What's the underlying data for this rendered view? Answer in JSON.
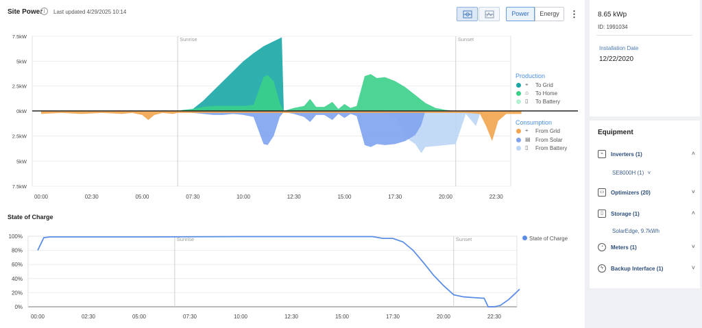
{
  "header": {
    "title": "Site Power",
    "updated": "Last updated 4/29/2025 10:14",
    "view_icons": [
      "chart-layout-split-icon",
      "chart-layout-stacked-icon"
    ],
    "tabs": [
      "Power",
      "Energy"
    ],
    "active_tab": "Power",
    "more_label": "⋮"
  },
  "soc_title": "State of Charge",
  "legend": {
    "production_head": "Production",
    "production": [
      {
        "label": "To Grid",
        "color": "#1aa6a6",
        "icon": "transmission-tower-icon"
      },
      {
        "label": "To Home",
        "color": "#3bd08a",
        "icon": "home-icon"
      },
      {
        "label": "To Battery",
        "color": "#b6f0d2",
        "icon": "battery-icon"
      }
    ],
    "consumption_head": "Consumption",
    "consumption": [
      {
        "label": "From Grid",
        "color": "#f2a44e",
        "icon": "transmission-tower-icon"
      },
      {
        "label": "From Solar",
        "color": "#7fa3f0",
        "icon": "solar-panel-icon"
      },
      {
        "label": "From Battery",
        "color": "#bcd6f5",
        "icon": "battery-icon"
      }
    ],
    "soc": {
      "label": "State of Charge",
      "color": "#5a8de6"
    }
  },
  "side": {
    "kwp": "8.65 kWp",
    "site_id": "ID: 1991034",
    "install_label": "Installation Date",
    "install_date": "12/22/2020",
    "equipment_title": "Equipment",
    "equipment": [
      {
        "label": "Inverters (1)",
        "icon": "inverter-icon",
        "chevron": "˄"
      },
      {
        "label": "Optimizers (20)",
        "icon": "optimizer-icon",
        "chevron": "˅"
      },
      {
        "label": "Storage (1)",
        "icon": "battery-icon",
        "chevron": "˄"
      },
      {
        "label": "Meters (1)",
        "icon": "meter-icon",
        "chevron": "˅"
      },
      {
        "label": "Backup Interface (1)",
        "icon": "backup-interface-icon",
        "chevron": "˅"
      }
    ],
    "inverter_sub": "SE8000H (1)",
    "inverter_sub_chevron": "˅",
    "storage_sub": "SolarEdge, 9.7kWh"
  },
  "chart_data": [
    {
      "type": "area",
      "title": "Site Power",
      "x_tick_labels": [
        "00:00",
        "02:30",
        "05:00",
        "07:30",
        "10:00",
        "12:30",
        "15:00",
        "17:30",
        "20:00",
        "22:30"
      ],
      "y_tick_labels": [
        "7.5kW",
        "5kW",
        "2.5kW",
        "0kW",
        "2.5kW",
        "5kW",
        "7.5kW"
      ],
      "ylim_production": [
        0,
        7.5
      ],
      "ylim_consumption": [
        0,
        7.5
      ],
      "x_range_hours": [
        0,
        23.75
      ],
      "annotations": [
        {
          "label": "Sunrise",
          "x": 6.75
        },
        {
          "label": "Sunset",
          "x": 20.5
        }
      ],
      "production_series": [
        {
          "name": "To Grid",
          "color": "#1aa6a6",
          "x": [
            6.75,
            7.5,
            8.0,
            8.5,
            9.0,
            9.5,
            10.0,
            10.5,
            11.0,
            11.5,
            11.9,
            12.0
          ],
          "values": [
            0,
            0.2,
            1.0,
            2.0,
            3.0,
            4.0,
            5.0,
            5.8,
            6.5,
            7.0,
            7.4,
            0
          ]
        },
        {
          "name": "To Home",
          "color": "#3bd08a",
          "x": [
            6.75,
            7.0,
            7.5,
            8.0,
            8.5,
            9.0,
            9.5,
            10.0,
            10.5,
            11.0,
            11.2,
            11.5,
            11.8,
            12.0,
            12.5,
            13.0,
            13.3,
            13.6,
            14.0,
            14.4,
            14.7,
            15.0,
            15.3,
            15.6,
            16.0,
            16.3,
            16.6,
            17.0,
            17.5,
            18.0,
            18.5,
            19.0,
            19.5,
            20.0,
            20.5
          ],
          "values": [
            0,
            0.1,
            0.2,
            0.4,
            0.5,
            0.5,
            0.5,
            0.5,
            0.6,
            3.4,
            3.6,
            3.0,
            0.8,
            0,
            0.3,
            0.5,
            1.2,
            0.4,
            0.4,
            0.9,
            0.2,
            0.7,
            0.3,
            0.5,
            3.5,
            3.7,
            3.3,
            3.4,
            3.0,
            2.4,
            1.6,
            0.8,
            0.3,
            0.1,
            0
          ]
        },
        {
          "name": "To Battery",
          "color": "#b6f0d2",
          "x": [],
          "values": []
        }
      ],
      "consumption_series": [
        {
          "name": "From Grid",
          "color": "#f2a44e",
          "x": [
            0,
            1.0,
            2.0,
            3.0,
            4.0,
            4.5,
            5.0,
            5.3,
            5.6,
            6.0,
            6.5,
            6.75,
            20.5,
            21.0,
            21.7,
            22.0,
            22.3,
            22.6,
            23.0,
            23.5,
            23.75
          ],
          "values": [
            0.3,
            0.2,
            0.3,
            0.2,
            0.3,
            0.2,
            0.4,
            0.9,
            0.4,
            0.2,
            0.3,
            0.2,
            0.2,
            0.2,
            0.3,
            1.5,
            3.0,
            1.0,
            0.3,
            0.3,
            0.3
          ]
        },
        {
          "name": "From Solar",
          "color": "#7fa3f0",
          "x": [
            6.75,
            7.5,
            8.0,
            8.5,
            9.0,
            9.5,
            10.0,
            10.5,
            11.0,
            11.2,
            11.5,
            11.8,
            12.0,
            12.5,
            13.0,
            13.3,
            13.6,
            14.0,
            14.4,
            14.7,
            15.0,
            15.3,
            15.6,
            16.0,
            16.3,
            16.6,
            17.0,
            17.5,
            18.0,
            18.5,
            18.8,
            19.0
          ],
          "values": [
            0,
            0.2,
            0.3,
            0.4,
            0.4,
            0.3,
            0.4,
            0.6,
            3.3,
            3.4,
            2.5,
            0.6,
            0.1,
            0.3,
            0.6,
            1.1,
            0.4,
            0.4,
            0.9,
            0.3,
            0.7,
            0.3,
            0.5,
            3.4,
            3.6,
            3.3,
            3.4,
            3.3,
            3.0,
            2.4,
            1.4,
            0
          ]
        },
        {
          "name": "From Battery",
          "color": "#bcd6f5",
          "x": [
            17.0,
            17.5,
            18.0,
            18.5,
            18.8,
            19.0,
            19.5,
            20.0,
            20.5,
            21.0,
            21.5,
            21.7,
            22.0
          ],
          "values": [
            0.2,
            0.6,
            2.6,
            3.3,
            4.2,
            3.6,
            3.5,
            3.4,
            3.3,
            0.3,
            1.5,
            0.3,
            0
          ]
        }
      ]
    },
    {
      "type": "line",
      "title": "State of Charge",
      "x_tick_labels": [
        "00:00",
        "02:30",
        "05:00",
        "07:30",
        "10:00",
        "12:30",
        "15:00",
        "17:30",
        "20:00",
        "22:30"
      ],
      "y_tick_labels": [
        "100%",
        "80%",
        "60%",
        "40%",
        "20%",
        "0%"
      ],
      "ylim": [
        0,
        100
      ],
      "annotations": [
        {
          "label": "Sunrise",
          "x": 6.75
        },
        {
          "label": "Sunset",
          "x": 20.5
        }
      ],
      "series": [
        {
          "name": "State of Charge",
          "color": "#5a8de6",
          "x": [
            0,
            0.3,
            0.6,
            1.5,
            5.0,
            10.0,
            15.0,
            16.5,
            17.0,
            17.5,
            18.0,
            18.5,
            19.0,
            19.5,
            20.0,
            20.5,
            21.0,
            21.5,
            22.0,
            22.2,
            22.5,
            22.8,
            23.2,
            23.5,
            23.75
          ],
          "values": [
            80,
            98,
            99,
            99,
            99,
            99.5,
            99.5,
            99.5,
            97,
            97,
            92,
            80,
            63,
            45,
            30,
            17,
            14,
            13,
            12,
            0,
            0,
            2,
            10,
            18,
            25
          ]
        }
      ]
    }
  ]
}
